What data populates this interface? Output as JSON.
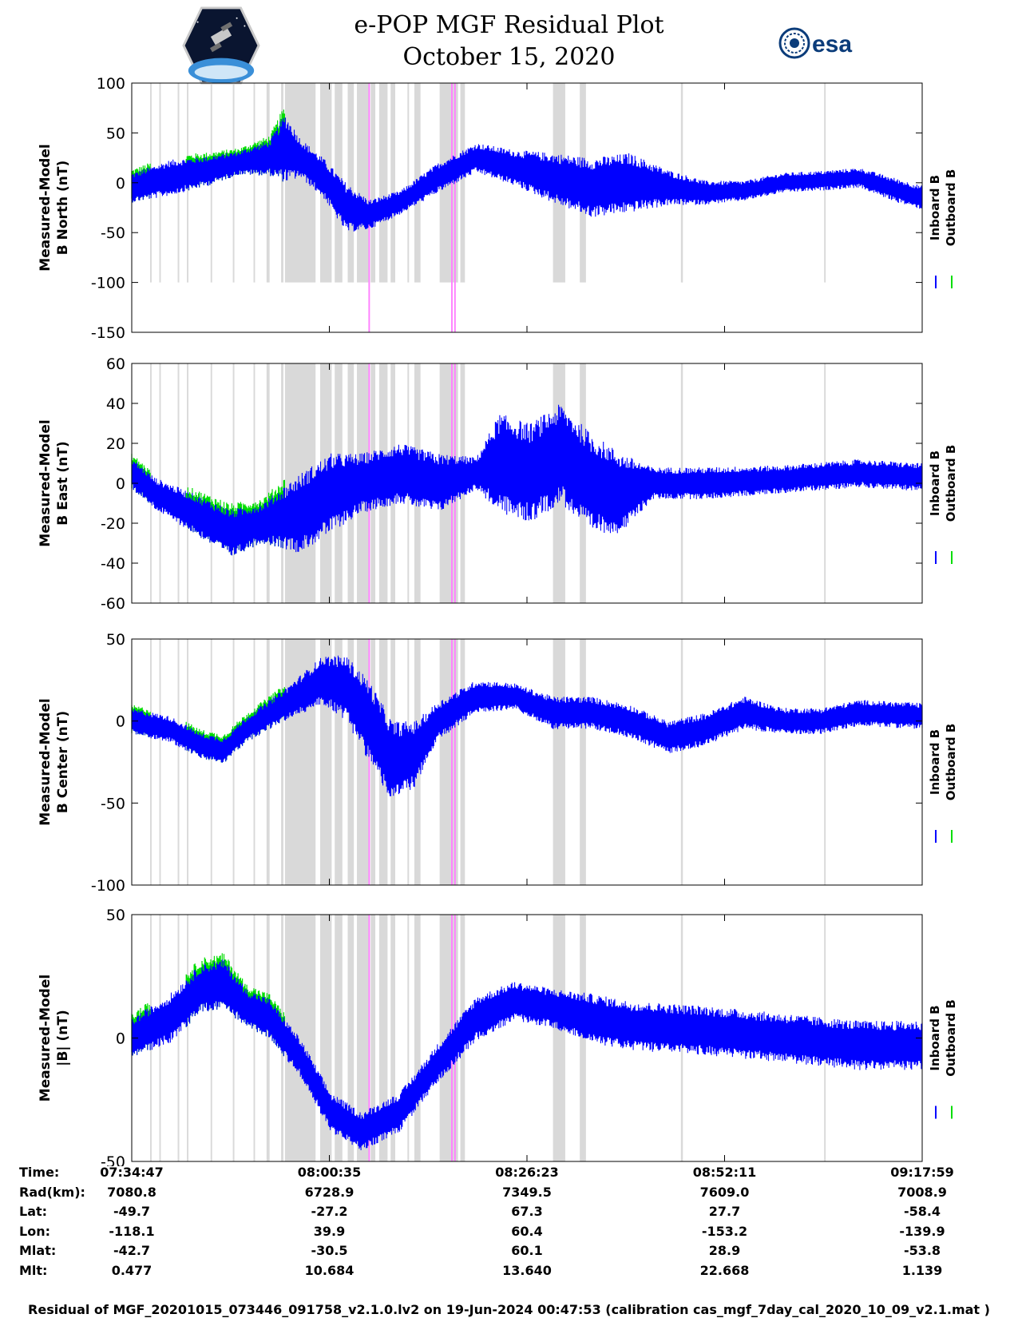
{
  "title": "e-POP MGF Residual Plot",
  "date": "October 15, 2020",
  "logos": {
    "left": "cassiope-mission-logo",
    "right_text": "esa"
  },
  "colors": {
    "inboard": "#0000ff",
    "outboard": "#00dd00",
    "gray_band": "#d9d9d9",
    "magenta_band": "#ff80ff"
  },
  "legend": {
    "inboard": "Inboard B",
    "outboard": "Outboard B"
  },
  "chart_data": [
    {
      "type": "line",
      "ylabel_line1": "Measured-Model",
      "ylabel_line2": "B North (nT)",
      "ylim": [
        -150,
        100
      ],
      "yticks": [
        "100",
        "50",
        "0",
        "-50",
        "-100",
        "-150"
      ],
      "ytick_values": [
        100,
        50,
        0,
        -50,
        -100,
        -150
      ],
      "x_range_minutes": [
        0,
        103.2
      ],
      "envelope_points": [
        {
          "t": 0,
          "y": -5,
          "a": 15
        },
        {
          "t": 5,
          "y": 5,
          "a": 18
        },
        {
          "t": 10,
          "y": 12,
          "a": 15
        },
        {
          "t": 14,
          "y": 20,
          "a": 12
        },
        {
          "t": 18,
          "y": 25,
          "a": 18
        },
        {
          "t": 20,
          "y": 35,
          "a": 35
        },
        {
          "t": 22,
          "y": 25,
          "a": 20
        },
        {
          "t": 25,
          "y": 5,
          "a": 20
        },
        {
          "t": 28,
          "y": -25,
          "a": 25
        },
        {
          "t": 31,
          "y": -32,
          "a": 15
        },
        {
          "t": 35,
          "y": -20,
          "a": 12
        },
        {
          "t": 40,
          "y": 5,
          "a": 15
        },
        {
          "t": 45,
          "y": 25,
          "a": 15
        },
        {
          "t": 50,
          "y": 15,
          "a": 18
        },
        {
          "t": 55,
          "y": 5,
          "a": 25
        },
        {
          "t": 60,
          "y": -5,
          "a": 30
        },
        {
          "t": 65,
          "y": 0,
          "a": 30
        },
        {
          "t": 70,
          "y": -5,
          "a": 18
        },
        {
          "t": 75,
          "y": -10,
          "a": 12
        },
        {
          "t": 80,
          "y": -8,
          "a": 10
        },
        {
          "t": 85,
          "y": 0,
          "a": 10
        },
        {
          "t": 90,
          "y": 2,
          "a": 10
        },
        {
          "t": 95,
          "y": 5,
          "a": 10
        },
        {
          "t": 100,
          "y": -8,
          "a": 12
        },
        {
          "t": 103.2,
          "y": -15,
          "a": 12
        }
      ]
    },
    {
      "type": "line",
      "ylabel_line1": "Measured-Model",
      "ylabel_line2": "B East (nT)",
      "ylim": [
        -60,
        60
      ],
      "yticks": [
        "60",
        "40",
        "20",
        "0",
        "-20",
        "-40",
        "-60"
      ],
      "ytick_values": [
        60,
        40,
        20,
        0,
        -20,
        -40,
        -60
      ],
      "x_range_minutes": [
        0,
        103.2
      ],
      "envelope_points": [
        {
          "t": 0,
          "y": 5,
          "a": 8
        },
        {
          "t": 3,
          "y": -5,
          "a": 8
        },
        {
          "t": 8,
          "y": -15,
          "a": 10
        },
        {
          "t": 13,
          "y": -25,
          "a": 12
        },
        {
          "t": 17,
          "y": -20,
          "a": 10
        },
        {
          "t": 22,
          "y": -15,
          "a": 20
        },
        {
          "t": 26,
          "y": -5,
          "a": 20
        },
        {
          "t": 30,
          "y": 0,
          "a": 15
        },
        {
          "t": 35,
          "y": 5,
          "a": 15
        },
        {
          "t": 40,
          "y": 0,
          "a": 15
        },
        {
          "t": 45,
          "y": 5,
          "a": 8
        },
        {
          "t": 48,
          "y": 10,
          "a": 25
        },
        {
          "t": 52,
          "y": 5,
          "a": 25
        },
        {
          "t": 56,
          "y": 15,
          "a": 25
        },
        {
          "t": 60,
          "y": 0,
          "a": 25
        },
        {
          "t": 64,
          "y": -5,
          "a": 20
        },
        {
          "t": 68,
          "y": 0,
          "a": 8
        },
        {
          "t": 75,
          "y": 0,
          "a": 8
        },
        {
          "t": 85,
          "y": 2,
          "a": 7
        },
        {
          "t": 95,
          "y": 5,
          "a": 7
        },
        {
          "t": 103.2,
          "y": 3,
          "a": 7
        }
      ]
    },
    {
      "type": "line",
      "ylabel_line1": "Measured-Model",
      "ylabel_line2": "B Center (nT)",
      "ylim": [
        -100,
        50
      ],
      "yticks": [
        "50",
        "0",
        "-50",
        "-100"
      ],
      "ytick_values": [
        50,
        0,
        -50,
        -100
      ],
      "x_range_minutes": [
        0,
        103.2
      ],
      "envelope_points": [
        {
          "t": 0,
          "y": 0,
          "a": 8
        },
        {
          "t": 5,
          "y": -5,
          "a": 8
        },
        {
          "t": 9,
          "y": -15,
          "a": 8
        },
        {
          "t": 12,
          "y": -18,
          "a": 8
        },
        {
          "t": 15,
          "y": -5,
          "a": 8
        },
        {
          "t": 20,
          "y": 10,
          "a": 10
        },
        {
          "t": 25,
          "y": 25,
          "a": 15
        },
        {
          "t": 28,
          "y": 20,
          "a": 20
        },
        {
          "t": 31,
          "y": 0,
          "a": 25
        },
        {
          "t": 34,
          "y": -25,
          "a": 25
        },
        {
          "t": 37,
          "y": -20,
          "a": 20
        },
        {
          "t": 40,
          "y": 0,
          "a": 12
        },
        {
          "t": 45,
          "y": 15,
          "a": 10
        },
        {
          "t": 50,
          "y": 15,
          "a": 8
        },
        {
          "t": 55,
          "y": 5,
          "a": 10
        },
        {
          "t": 60,
          "y": 5,
          "a": 10
        },
        {
          "t": 65,
          "y": 0,
          "a": 10
        },
        {
          "t": 70,
          "y": -10,
          "a": 10
        },
        {
          "t": 75,
          "y": -5,
          "a": 10
        },
        {
          "t": 80,
          "y": 5,
          "a": 10
        },
        {
          "t": 85,
          "y": 0,
          "a": 8
        },
        {
          "t": 90,
          "y": 0,
          "a": 8
        },
        {
          "t": 95,
          "y": 5,
          "a": 8
        },
        {
          "t": 103.2,
          "y": 3,
          "a": 8
        }
      ]
    },
    {
      "type": "line",
      "ylabel_line1": "Measured-Model",
      "ylabel_line2": "|B| (nT)",
      "ylim": [
        -50,
        50
      ],
      "yticks": [
        "50",
        "0",
        "-50"
      ],
      "ytick_values": [
        50,
        0,
        -50
      ],
      "x_range_minutes": [
        0,
        103.2
      ],
      "envelope_points": [
        {
          "t": 0,
          "y": 0,
          "a": 8
        },
        {
          "t": 5,
          "y": 8,
          "a": 10
        },
        {
          "t": 9,
          "y": 20,
          "a": 10
        },
        {
          "t": 12,
          "y": 22,
          "a": 10
        },
        {
          "t": 15,
          "y": 12,
          "a": 8
        },
        {
          "t": 18,
          "y": 8,
          "a": 8
        },
        {
          "t": 22,
          "y": -8,
          "a": 8
        },
        {
          "t": 26,
          "y": -30,
          "a": 8
        },
        {
          "t": 30,
          "y": -38,
          "a": 8
        },
        {
          "t": 35,
          "y": -30,
          "a": 8
        },
        {
          "t": 40,
          "y": -10,
          "a": 8
        },
        {
          "t": 45,
          "y": 8,
          "a": 9
        },
        {
          "t": 50,
          "y": 15,
          "a": 8
        },
        {
          "t": 55,
          "y": 12,
          "a": 8
        },
        {
          "t": 60,
          "y": 8,
          "a": 10
        },
        {
          "t": 65,
          "y": 5,
          "a": 10
        },
        {
          "t": 75,
          "y": 3,
          "a": 10
        },
        {
          "t": 85,
          "y": 0,
          "a": 10
        },
        {
          "t": 95,
          "y": -3,
          "a": 10
        },
        {
          "t": 103.2,
          "y": -3,
          "a": 10
        }
      ]
    }
  ],
  "gray_bands_minutes": [
    [
      2.4,
      2.6
    ],
    [
      3.6,
      3.8
    ],
    [
      6.0,
      6.2
    ],
    [
      7.2,
      7.4
    ],
    [
      10.3,
      10.5
    ],
    [
      13.2,
      13.4
    ],
    [
      15.9,
      16.1
    ],
    [
      17.6,
      18.0
    ],
    [
      19.5,
      19.8
    ],
    [
      20.0,
      24.0
    ],
    [
      24.6,
      26.1
    ],
    [
      26.5,
      27.5
    ],
    [
      28.2,
      29.0
    ],
    [
      29.4,
      30.9
    ],
    [
      31.2,
      31.8
    ],
    [
      32.3,
      33.4
    ],
    [
      33.8,
      34.4
    ],
    [
      36.0,
      36.2
    ],
    [
      36.9,
      37.7
    ],
    [
      40.2,
      42.6
    ],
    [
      42.9,
      43.5
    ],
    [
      55.0,
      56.6
    ],
    [
      58.5,
      59.3
    ],
    [
      71.7,
      71.9
    ],
    [
      71.8,
      71.8
    ],
    [
      90.4,
      90.6
    ]
  ],
  "magenta_bands_minutes": [
    [
      30.9,
      31.1
    ],
    [
      41.7,
      41.9
    ],
    [
      42.1,
      42.3
    ]
  ],
  "info_labels": [
    "Time:",
    "Rad(km):",
    "Lat:",
    "Lon:",
    "Mlat:",
    "Mlt:"
  ],
  "info_columns": [
    {
      "t": 0,
      "values": [
        "07:34:47",
        "7080.8",
        "-49.7",
        "-118.1",
        "-42.7",
        "0.477"
      ]
    },
    {
      "t": 25.8,
      "values": [
        "08:00:35",
        "6728.9",
        "-27.2",
        "39.9",
        "-30.5",
        "10.684"
      ]
    },
    {
      "t": 51.6,
      "values": [
        "08:26:23",
        "7349.5",
        "67.3",
        "60.4",
        "60.1",
        "13.640"
      ]
    },
    {
      "t": 77.4,
      "values": [
        "08:52:11",
        "7609.0",
        "27.7",
        "-153.2",
        "28.9",
        "22.668"
      ]
    },
    {
      "t": 103.2,
      "values": [
        "09:17:59",
        "7008.9",
        "-58.4",
        "-139.9",
        "-53.8",
        "1.139"
      ]
    }
  ],
  "footer": "Residual of MGF_20201015_073446_091758_v2.1.0.lv2 on 19-Jun-2024 00:47:53 (calibration cas_mgf_7day_cal_2020_10_09_v2.1.mat )"
}
